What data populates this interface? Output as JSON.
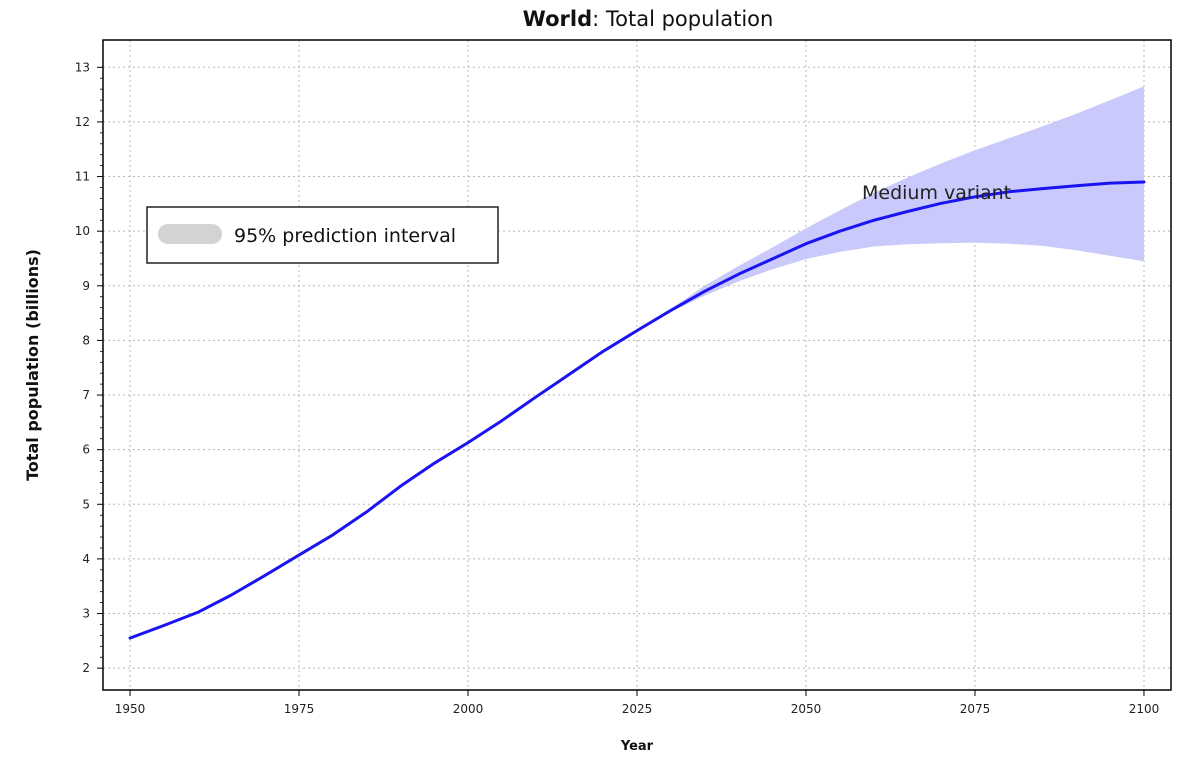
{
  "chart_data": {
    "type": "line",
    "title_bold": "World",
    "title_rest": ": Total population",
    "xlabel": "Year",
    "ylabel": "Total population (billions)",
    "xlim": [
      1946,
      2104
    ],
    "ylim": [
      1.6,
      13.5
    ],
    "x_ticks": [
      "1950",
      "1975",
      "2000",
      "2025",
      "2050",
      "2075",
      "2100"
    ],
    "y_ticks": [
      "2",
      "3",
      "4",
      "5",
      "6",
      "7",
      "8",
      "9",
      "10",
      "11",
      "12",
      "13"
    ],
    "grid": true,
    "legend": {
      "position": "upper-left",
      "label": "95% prediction interval"
    },
    "annotation": "Medium variant",
    "colors": {
      "line": "#1a14f0",
      "band": "#c9c9fb",
      "legend_swatch": "#d3d3d3"
    },
    "series": [
      {
        "label": "Medium variant",
        "x": [
          1950,
          1955,
          1960,
          1965,
          1970,
          1975,
          1980,
          1985,
          1990,
          1995,
          2000,
          2005,
          2010,
          2015,
          2020,
          2025,
          2030,
          2035,
          2040,
          2045,
          2050,
          2055,
          2060,
          2065,
          2070,
          2075,
          2080,
          2085,
          2090,
          2095,
          2100
        ],
        "y": [
          2.55,
          2.78,
          3.02,
          3.34,
          3.7,
          4.07,
          4.44,
          4.86,
          5.33,
          5.75,
          6.13,
          6.53,
          6.96,
          7.38,
          7.8,
          8.18,
          8.55,
          8.9,
          9.21,
          9.49,
          9.77,
          10.0,
          10.2,
          10.36,
          10.51,
          10.63,
          10.72,
          10.78,
          10.83,
          10.88,
          10.9
        ]
      }
    ],
    "band": {
      "label": "95% prediction interval",
      "x": [
        2025,
        2030,
        2035,
        2040,
        2045,
        2050,
        2055,
        2060,
        2065,
        2070,
        2075,
        2080,
        2085,
        2090,
        2095,
        2100
      ],
      "lower": [
        8.18,
        8.52,
        8.82,
        9.08,
        9.3,
        9.49,
        9.62,
        9.72,
        9.76,
        9.78,
        9.79,
        9.77,
        9.73,
        9.65,
        9.55,
        9.45
      ],
      "upper": [
        8.18,
        8.58,
        9.0,
        9.36,
        9.7,
        10.05,
        10.38,
        10.7,
        10.98,
        11.24,
        11.48,
        11.7,
        11.92,
        12.15,
        12.4,
        12.65
      ]
    }
  }
}
